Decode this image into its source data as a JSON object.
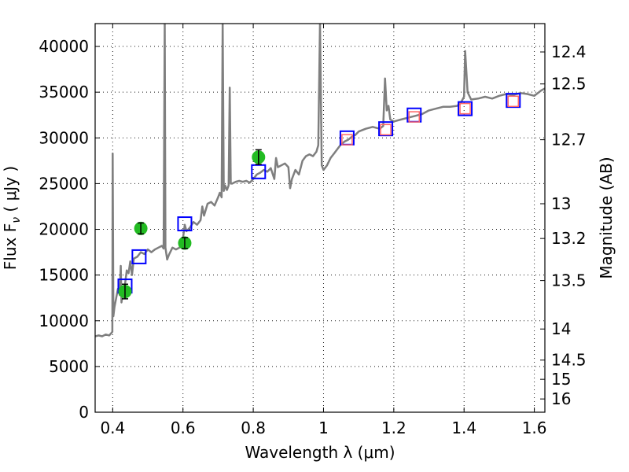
{
  "chart_data": {
    "type": "line",
    "xlabel": "Wavelength  λ (μm)",
    "ylabel": "Flux  F",
    "ylabel_sub": "ν",
    "ylabel_unit": "  ( μJy )",
    "y2label": "Magnitude (AB)",
    "xlim": [
      0.35,
      1.63
    ],
    "ylim": [
      0,
      42500
    ],
    "grid": true,
    "colors": {
      "spectrum": "#7f7f7f",
      "model_points": "#0000ff",
      "nir_points": "#ff6666",
      "phot_points": "#22bb22",
      "error_bars": "#000000"
    },
    "x_ticks": [
      {
        "value": 0.4,
        "label": "0.4"
      },
      {
        "value": 0.6,
        "label": "0.6"
      },
      {
        "value": 0.8,
        "label": "0.8"
      },
      {
        "value": 1.0,
        "label": "1"
      },
      {
        "value": 1.2,
        "label": "1.2"
      },
      {
        "value": 1.4,
        "label": "1.4"
      },
      {
        "value": 1.6,
        "label": "1.6"
      }
    ],
    "y_ticks": [
      {
        "value": 0,
        "label": "0"
      },
      {
        "value": 5000,
        "label": "5000"
      },
      {
        "value": 10000,
        "label": "10000"
      },
      {
        "value": 15000,
        "label": "15000"
      },
      {
        "value": 20000,
        "label": "20000"
      },
      {
        "value": 25000,
        "label": "25000"
      },
      {
        "value": 30000,
        "label": "30000"
      },
      {
        "value": 35000,
        "label": "35000"
      },
      {
        "value": 40000,
        "label": "40000"
      }
    ],
    "y2_ticks": [
      {
        "flux": 39400,
        "label": "12.4"
      },
      {
        "flux": 35900,
        "label": "12.5"
      },
      {
        "flux": 29800,
        "label": "12.7"
      },
      {
        "flux": 22800,
        "label": "13"
      },
      {
        "flux": 19000,
        "label": "13.2"
      },
      {
        "flux": 14400,
        "label": "13.5"
      },
      {
        "flux": 9100,
        "label": "14"
      },
      {
        "flux": 5700,
        "label": "14.5"
      },
      {
        "flux": 3600,
        "label": "15"
      },
      {
        "flux": 1450,
        "label": "16"
      }
    ],
    "series": [
      {
        "kind": "spectrum",
        "points": [
          [
            0.35,
            8300
          ],
          [
            0.36,
            8400
          ],
          [
            0.37,
            8300
          ],
          [
            0.38,
            8500
          ],
          [
            0.39,
            8400
          ],
          [
            0.395,
            8600
          ],
          [
            0.399,
            8800
          ],
          [
            0.4,
            28300
          ],
          [
            0.402,
            10500
          ],
          [
            0.405,
            11500
          ],
          [
            0.41,
            12500
          ],
          [
            0.415,
            13500
          ],
          [
            0.42,
            12800
          ],
          [
            0.423,
            16000
          ],
          [
            0.425,
            12000
          ],
          [
            0.43,
            13500
          ],
          [
            0.435,
            14000
          ],
          [
            0.44,
            15500
          ],
          [
            0.445,
            15200
          ],
          [
            0.45,
            16500
          ],
          [
            0.455,
            15000
          ],
          [
            0.46,
            16800
          ],
          [
            0.47,
            17000
          ],
          [
            0.48,
            17500
          ],
          [
            0.49,
            17300
          ],
          [
            0.5,
            17800
          ],
          [
            0.51,
            17500
          ],
          [
            0.52,
            17800
          ],
          [
            0.53,
            18000
          ],
          [
            0.54,
            18200
          ],
          [
            0.545,
            17900
          ],
          [
            0.548,
            42500
          ],
          [
            0.55,
            18000
          ],
          [
            0.555,
            16700
          ],
          [
            0.56,
            17200
          ],
          [
            0.57,
            18000
          ],
          [
            0.58,
            17800
          ],
          [
            0.59,
            18000
          ],
          [
            0.6,
            19000
          ],
          [
            0.605,
            20500
          ],
          [
            0.61,
            19800
          ],
          [
            0.62,
            20200
          ],
          [
            0.63,
            20800
          ],
          [
            0.64,
            20500
          ],
          [
            0.65,
            21000
          ],
          [
            0.655,
            22500
          ],
          [
            0.66,
            21500
          ],
          [
            0.67,
            22800
          ],
          [
            0.68,
            23000
          ],
          [
            0.69,
            22600
          ],
          [
            0.7,
            23500
          ],
          [
            0.705,
            24000
          ],
          [
            0.71,
            23500
          ],
          [
            0.713,
            42500
          ],
          [
            0.716,
            24200
          ],
          [
            0.72,
            24800
          ],
          [
            0.725,
            24300
          ],
          [
            0.73,
            24800
          ],
          [
            0.733,
            35500
          ],
          [
            0.736,
            25000
          ],
          [
            0.74,
            25000
          ],
          [
            0.75,
            25200
          ],
          [
            0.76,
            25300
          ],
          [
            0.77,
            25200
          ],
          [
            0.78,
            25300
          ],
          [
            0.79,
            25100
          ],
          [
            0.8,
            25500
          ],
          [
            0.81,
            26000
          ],
          [
            0.82,
            26200
          ],
          [
            0.83,
            26500
          ],
          [
            0.84,
            26300
          ],
          [
            0.85,
            26700
          ],
          [
            0.86,
            25500
          ],
          [
            0.865,
            27800
          ],
          [
            0.87,
            26800
          ],
          [
            0.88,
            27000
          ],
          [
            0.89,
            27200
          ],
          [
            0.9,
            26800
          ],
          [
            0.905,
            24500
          ],
          [
            0.91,
            25500
          ],
          [
            0.92,
            26500
          ],
          [
            0.93,
            26000
          ],
          [
            0.94,
            27500
          ],
          [
            0.95,
            28000
          ],
          [
            0.96,
            28200
          ],
          [
            0.97,
            28000
          ],
          [
            0.98,
            28500
          ],
          [
            0.985,
            29200
          ],
          [
            0.99,
            42500
          ],
          [
            0.995,
            27000
          ],
          [
            1.0,
            26500
          ],
          [
            1.01,
            27000
          ],
          [
            1.02,
            27800
          ],
          [
            1.03,
            28300
          ],
          [
            1.04,
            28800
          ],
          [
            1.05,
            29300
          ],
          [
            1.06,
            29600
          ],
          [
            1.07,
            29800
          ],
          [
            1.08,
            30100
          ],
          [
            1.09,
            30300
          ],
          [
            1.1,
            30700
          ],
          [
            1.12,
            31000
          ],
          [
            1.14,
            31200
          ],
          [
            1.16,
            31000
          ],
          [
            1.17,
            31300
          ],
          [
            1.175,
            36500
          ],
          [
            1.18,
            33000
          ],
          [
            1.185,
            33500
          ],
          [
            1.19,
            32000
          ],
          [
            1.2,
            31800
          ],
          [
            1.22,
            32000
          ],
          [
            1.24,
            32200
          ],
          [
            1.26,
            32400
          ],
          [
            1.28,
            32600
          ],
          [
            1.3,
            33000
          ],
          [
            1.32,
            33200
          ],
          [
            1.34,
            33400
          ],
          [
            1.36,
            33400
          ],
          [
            1.38,
            33500
          ],
          [
            1.39,
            33800
          ],
          [
            1.4,
            34500
          ],
          [
            1.403,
            39500
          ],
          [
            1.41,
            35000
          ],
          [
            1.42,
            34200
          ],
          [
            1.44,
            34300
          ],
          [
            1.46,
            34500
          ],
          [
            1.48,
            34300
          ],
          [
            1.5,
            34600
          ],
          [
            1.52,
            34800
          ],
          [
            1.54,
            34700
          ],
          [
            1.56,
            34900
          ],
          [
            1.58,
            34800
          ],
          [
            1.6,
            34600
          ],
          [
            1.62,
            35200
          ],
          [
            1.63,
            35400
          ]
        ]
      },
      {
        "kind": "model_squares",
        "points": [
          [
            0.435,
            13800
          ],
          [
            0.475,
            17000
          ],
          [
            0.605,
            20600
          ],
          [
            0.815,
            26300
          ],
          [
            1.067,
            30000
          ],
          [
            1.177,
            31000
          ],
          [
            1.258,
            32500
          ],
          [
            1.403,
            33200
          ],
          [
            1.54,
            34100
          ]
        ]
      },
      {
        "kind": "nir_squares",
        "points": [
          [
            1.067,
            29800
          ],
          [
            1.177,
            30900
          ],
          [
            1.258,
            32300
          ],
          [
            1.403,
            33200
          ],
          [
            1.54,
            34000
          ]
        ]
      },
      {
        "kind": "photometry",
        "points": [
          {
            "x": 0.435,
            "y": 13200,
            "err": 800
          },
          {
            "x": 0.48,
            "y": 20100,
            "err": 600
          },
          {
            "x": 0.605,
            "y": 18500,
            "err": 600
          },
          {
            "x": 0.815,
            "y": 27900,
            "err": 800
          }
        ]
      }
    ]
  }
}
